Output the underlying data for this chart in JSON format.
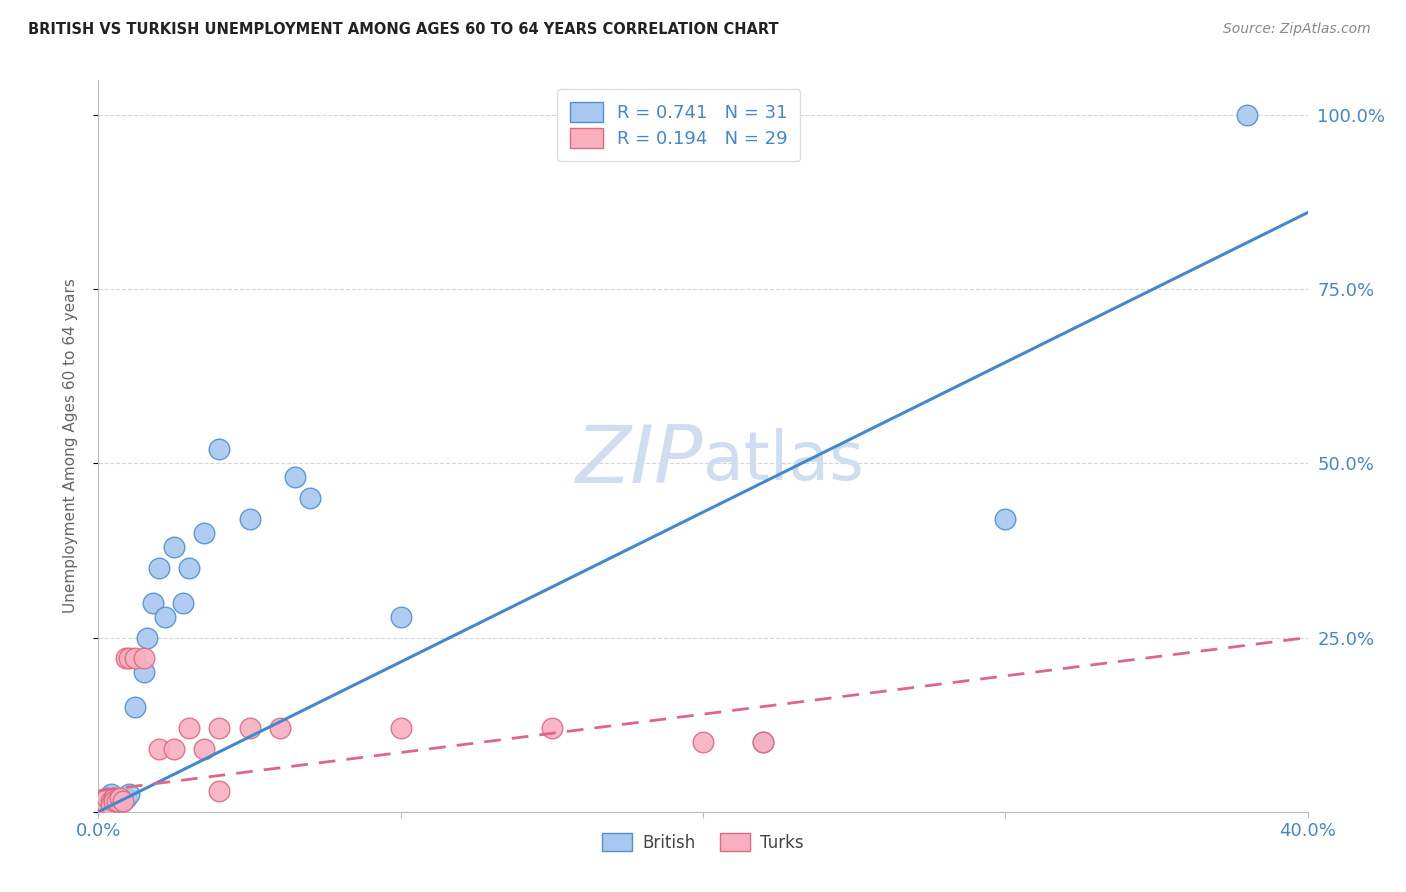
{
  "title": "BRITISH VS TURKISH UNEMPLOYMENT AMONG AGES 60 TO 64 YEARS CORRELATION CHART",
  "source": "Source: ZipAtlas.com",
  "ylabel": "Unemployment Among Ages 60 to 64 years",
  "xlim": [
    0.0,
    0.4
  ],
  "ylim": [
    0.0,
    1.05
  ],
  "yticks_right": [
    0.25,
    0.5,
    0.75,
    1.0
  ],
  "ytick_labels_right": [
    "25.0%",
    "50.0%",
    "75.0%",
    "100.0%"
  ],
  "xtick_positions": [
    0.0,
    0.1,
    0.2,
    0.3,
    0.4
  ],
  "xtick_labels": [
    "0.0%",
    "",
    "",
    "",
    "40.0%"
  ],
  "british_R": "0.741",
  "british_N": "31",
  "turks_R": "0.194",
  "turks_N": "29",
  "british_fill": "#A8C8F0",
  "british_edge": "#5090D0",
  "turks_fill": "#F8B0C0",
  "turks_edge": "#E06880",
  "british_line_color": "#4488CC",
  "turks_line_color": "#DD6688",
  "watermark_color": "#D0DCF0",
  "background_color": "#FFFFFF",
  "grid_color": "#CCCCCC",
  "british_x": [
    0.001,
    0.002,
    0.003,
    0.003,
    0.004,
    0.004,
    0.005,
    0.005,
    0.006,
    0.007,
    0.008,
    0.009,
    0.01,
    0.012,
    0.015,
    0.016,
    0.018,
    0.02,
    0.022,
    0.025,
    0.028,
    0.03,
    0.035,
    0.04,
    0.05,
    0.065,
    0.07,
    0.1,
    0.22,
    0.3,
    0.38
  ],
  "british_y": [
    0.01,
    0.015,
    0.01,
    0.02,
    0.01,
    0.025,
    0.015,
    0.02,
    0.015,
    0.02,
    0.015,
    0.02,
    0.025,
    0.15,
    0.2,
    0.25,
    0.3,
    0.35,
    0.28,
    0.38,
    0.3,
    0.35,
    0.4,
    0.52,
    0.42,
    0.48,
    0.45,
    0.28,
    0.1,
    0.42,
    1.0
  ],
  "turks_x": [
    0.001,
    0.001,
    0.002,
    0.002,
    0.003,
    0.003,
    0.004,
    0.004,
    0.005,
    0.005,
    0.006,
    0.007,
    0.008,
    0.009,
    0.01,
    0.012,
    0.015,
    0.02,
    0.025,
    0.03,
    0.035,
    0.04,
    0.04,
    0.05,
    0.06,
    0.1,
    0.15,
    0.2,
    0.22
  ],
  "turks_y": [
    0.005,
    0.01,
    0.008,
    0.015,
    0.01,
    0.02,
    0.015,
    0.01,
    0.02,
    0.015,
    0.015,
    0.02,
    0.015,
    0.22,
    0.22,
    0.22,
    0.22,
    0.09,
    0.09,
    0.12,
    0.09,
    0.12,
    0.03,
    0.12,
    0.12,
    0.12,
    0.12,
    0.1,
    0.1
  ],
  "brit_line_x0": 0.0,
  "brit_line_y0": 0.0,
  "brit_line_x1": 0.4,
  "brit_line_y1": 0.86,
  "turk_line_x0": 0.0,
  "turk_line_y0": 0.03,
  "turk_line_x1": 0.4,
  "turk_line_y1": 0.25
}
